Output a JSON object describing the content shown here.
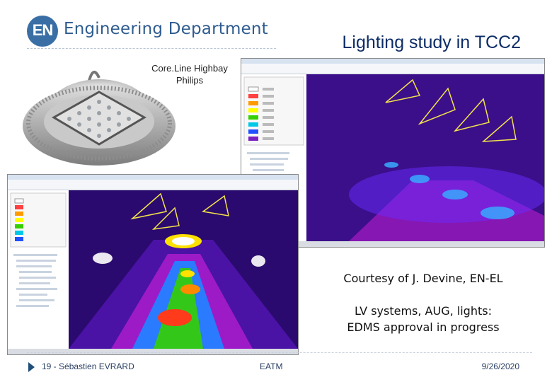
{
  "header": {
    "logo_text": "EN",
    "department": "Engineering Department",
    "slide_title": "Lighting study in TCC2"
  },
  "product": {
    "caption_line1": "Core.Line Highbay",
    "caption_line2": "Philips"
  },
  "notes": {
    "courtesy": "Courtesy of J. Devine, EN-EL",
    "status_line1": "LV systems, AUG, lights:",
    "status_line2": "EDMS approval in progress"
  },
  "footer": {
    "page": "19 -  Sébastien EVRARD",
    "event": "EATM",
    "date": "9/26/2020"
  },
  "colors": {
    "title": "#0d2d66",
    "brand": "#2f5c8f",
    "heatmap_bg": "#2a0a6e"
  }
}
